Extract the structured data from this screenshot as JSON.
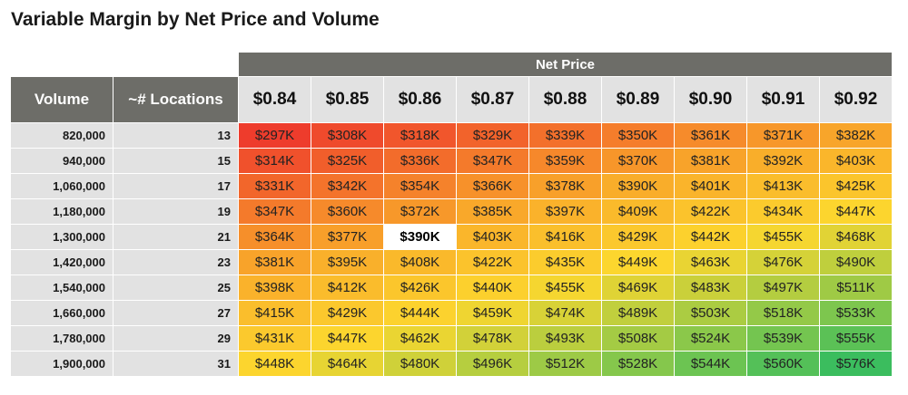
{
  "title": "Variable Margin by Net Price and Volume",
  "chart_data": {
    "type": "heatmap",
    "title": "Variable Margin by Net Price and Volume",
    "column_group_label": "Net Price",
    "row_header_labels": [
      "Volume",
      "~# Locations"
    ],
    "columns": [
      "$0.84",
      "$0.85",
      "$0.86",
      "$0.87",
      "$0.88",
      "$0.89",
      "$0.90",
      "$0.91",
      "$0.92"
    ],
    "rows": [
      {
        "volume": "820,000",
        "locations": "13",
        "values": [
          "$297K",
          "$308K",
          "$318K",
          "$329K",
          "$339K",
          "$350K",
          "$361K",
          "$371K",
          "$382K"
        ]
      },
      {
        "volume": "940,000",
        "locations": "15",
        "values": [
          "$314K",
          "$325K",
          "$336K",
          "$347K",
          "$359K",
          "$370K",
          "$381K",
          "$392K",
          "$403K"
        ]
      },
      {
        "volume": "1,060,000",
        "locations": "17",
        "values": [
          "$331K",
          "$342K",
          "$354K",
          "$366K",
          "$378K",
          "$390K",
          "$401K",
          "$413K",
          "$425K"
        ]
      },
      {
        "volume": "1,180,000",
        "locations": "19",
        "values": [
          "$347K",
          "$360K",
          "$372K",
          "$385K",
          "$397K",
          "$409K",
          "$422K",
          "$434K",
          "$447K"
        ]
      },
      {
        "volume": "1,300,000",
        "locations": "21",
        "values": [
          "$364K",
          "$377K",
          "$390K",
          "$403K",
          "$416K",
          "$429K",
          "$442K",
          "$455K",
          "$468K"
        ]
      },
      {
        "volume": "1,420,000",
        "locations": "23",
        "values": [
          "$381K",
          "$395K",
          "$408K",
          "$422K",
          "$435K",
          "$449K",
          "$463K",
          "$476K",
          "$490K"
        ]
      },
      {
        "volume": "1,540,000",
        "locations": "25",
        "values": [
          "$398K",
          "$412K",
          "$426K",
          "$440K",
          "$455K",
          "$469K",
          "$483K",
          "$497K",
          "$511K"
        ]
      },
      {
        "volume": "1,660,000",
        "locations": "27",
        "values": [
          "$415K",
          "$429K",
          "$444K",
          "$459K",
          "$474K",
          "$489K",
          "$503K",
          "$518K",
          "$533K"
        ]
      },
      {
        "volume": "1,780,000",
        "locations": "29",
        "values": [
          "$431K",
          "$447K",
          "$462K",
          "$478K",
          "$493K",
          "$508K",
          "$524K",
          "$539K",
          "$555K"
        ]
      },
      {
        "volume": "1,900,000",
        "locations": "31",
        "values": [
          "$448K",
          "$464K",
          "$480K",
          "$496K",
          "$512K",
          "$528K",
          "$544K",
          "$560K",
          "$576K"
        ]
      }
    ],
    "numeric_values_k": [
      [
        297,
        308,
        318,
        329,
        339,
        350,
        361,
        371,
        382
      ],
      [
        314,
        325,
        336,
        347,
        359,
        370,
        381,
        392,
        403
      ],
      [
        331,
        342,
        354,
        366,
        378,
        390,
        401,
        413,
        425
      ],
      [
        347,
        360,
        372,
        385,
        397,
        409,
        422,
        434,
        447
      ],
      [
        364,
        377,
        390,
        403,
        416,
        429,
        442,
        455,
        468
      ],
      [
        381,
        395,
        408,
        422,
        435,
        449,
        463,
        476,
        490
      ],
      [
        398,
        412,
        426,
        440,
        455,
        469,
        483,
        497,
        511
      ],
      [
        415,
        429,
        444,
        459,
        474,
        489,
        503,
        518,
        533
      ],
      [
        431,
        447,
        462,
        478,
        493,
        508,
        524,
        539,
        555
      ],
      [
        448,
        464,
        480,
        496,
        512,
        528,
        544,
        560,
        576
      ]
    ],
    "highlight": {
      "row": 4,
      "col": 2
    },
    "color_scale": [
      "#ee3c2c",
      "#f9aa2a",
      "#fcd72e",
      "#3bbd5e"
    ]
  }
}
